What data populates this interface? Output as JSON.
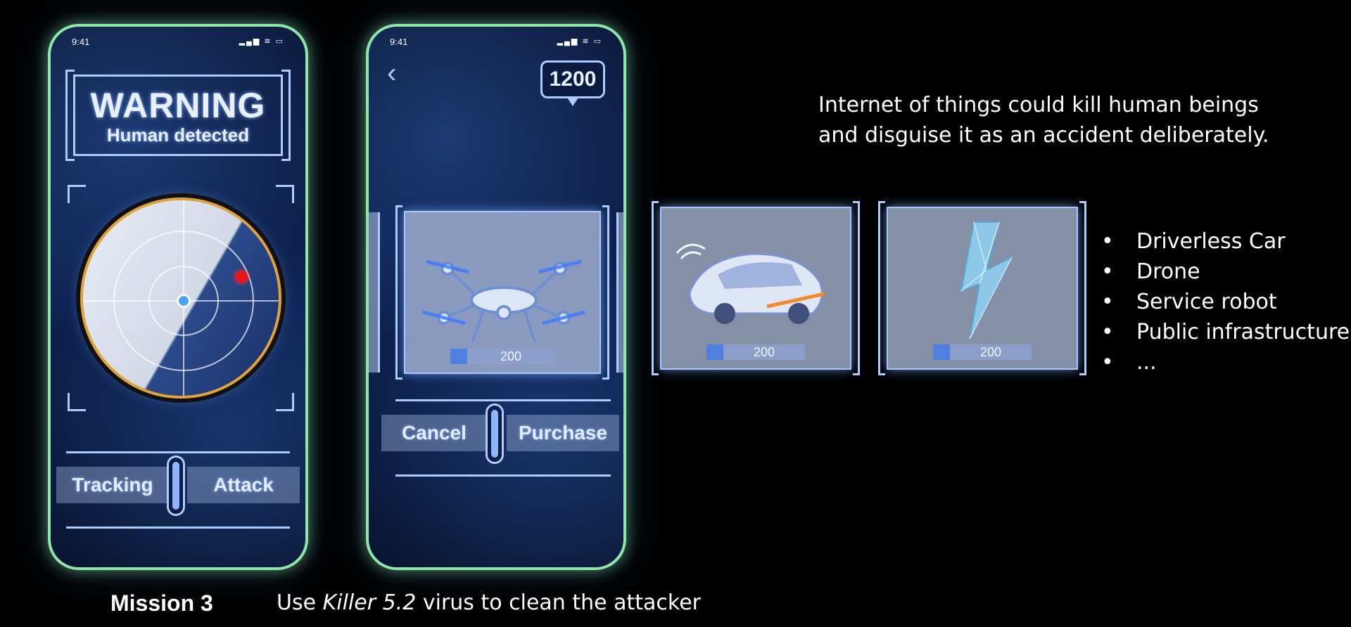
{
  "phone1": {
    "status_time": "9:41",
    "warning_title": "WARNING",
    "warning_subtitle": "Human detected",
    "left_button": "Tracking",
    "right_button": "Attack"
  },
  "phone2": {
    "status_time": "9:41",
    "coins": "1200",
    "items": [
      {
        "icon": "drone-icon",
        "price": "200"
      }
    ],
    "left_button": "Cancel",
    "right_button": "Purchase"
  },
  "cards": [
    {
      "icon": "driverless-car-icon",
      "price": "200"
    },
    {
      "icon": "lightning-bolt-icon",
      "price": "200"
    }
  ],
  "headline": {
    "line1": "Internet of things could kill human beings",
    "line2": "and disguise it as an accident deliberately."
  },
  "bullets": [
    "Driverless Car",
    "Drone",
    "Service robot",
    "Public infrastructure",
    "..."
  ],
  "caption": {
    "mission": "Mission 3",
    "prefix": "Use",
    "virus": "Killer 5.2",
    "suffix": "virus to clean the attacker"
  },
  "colors": {
    "phone_border": "#8fe6a9",
    "hud_blue": "#aecbff",
    "alert_red": "#e4161c",
    "radar_orange": "#e0a33b"
  }
}
